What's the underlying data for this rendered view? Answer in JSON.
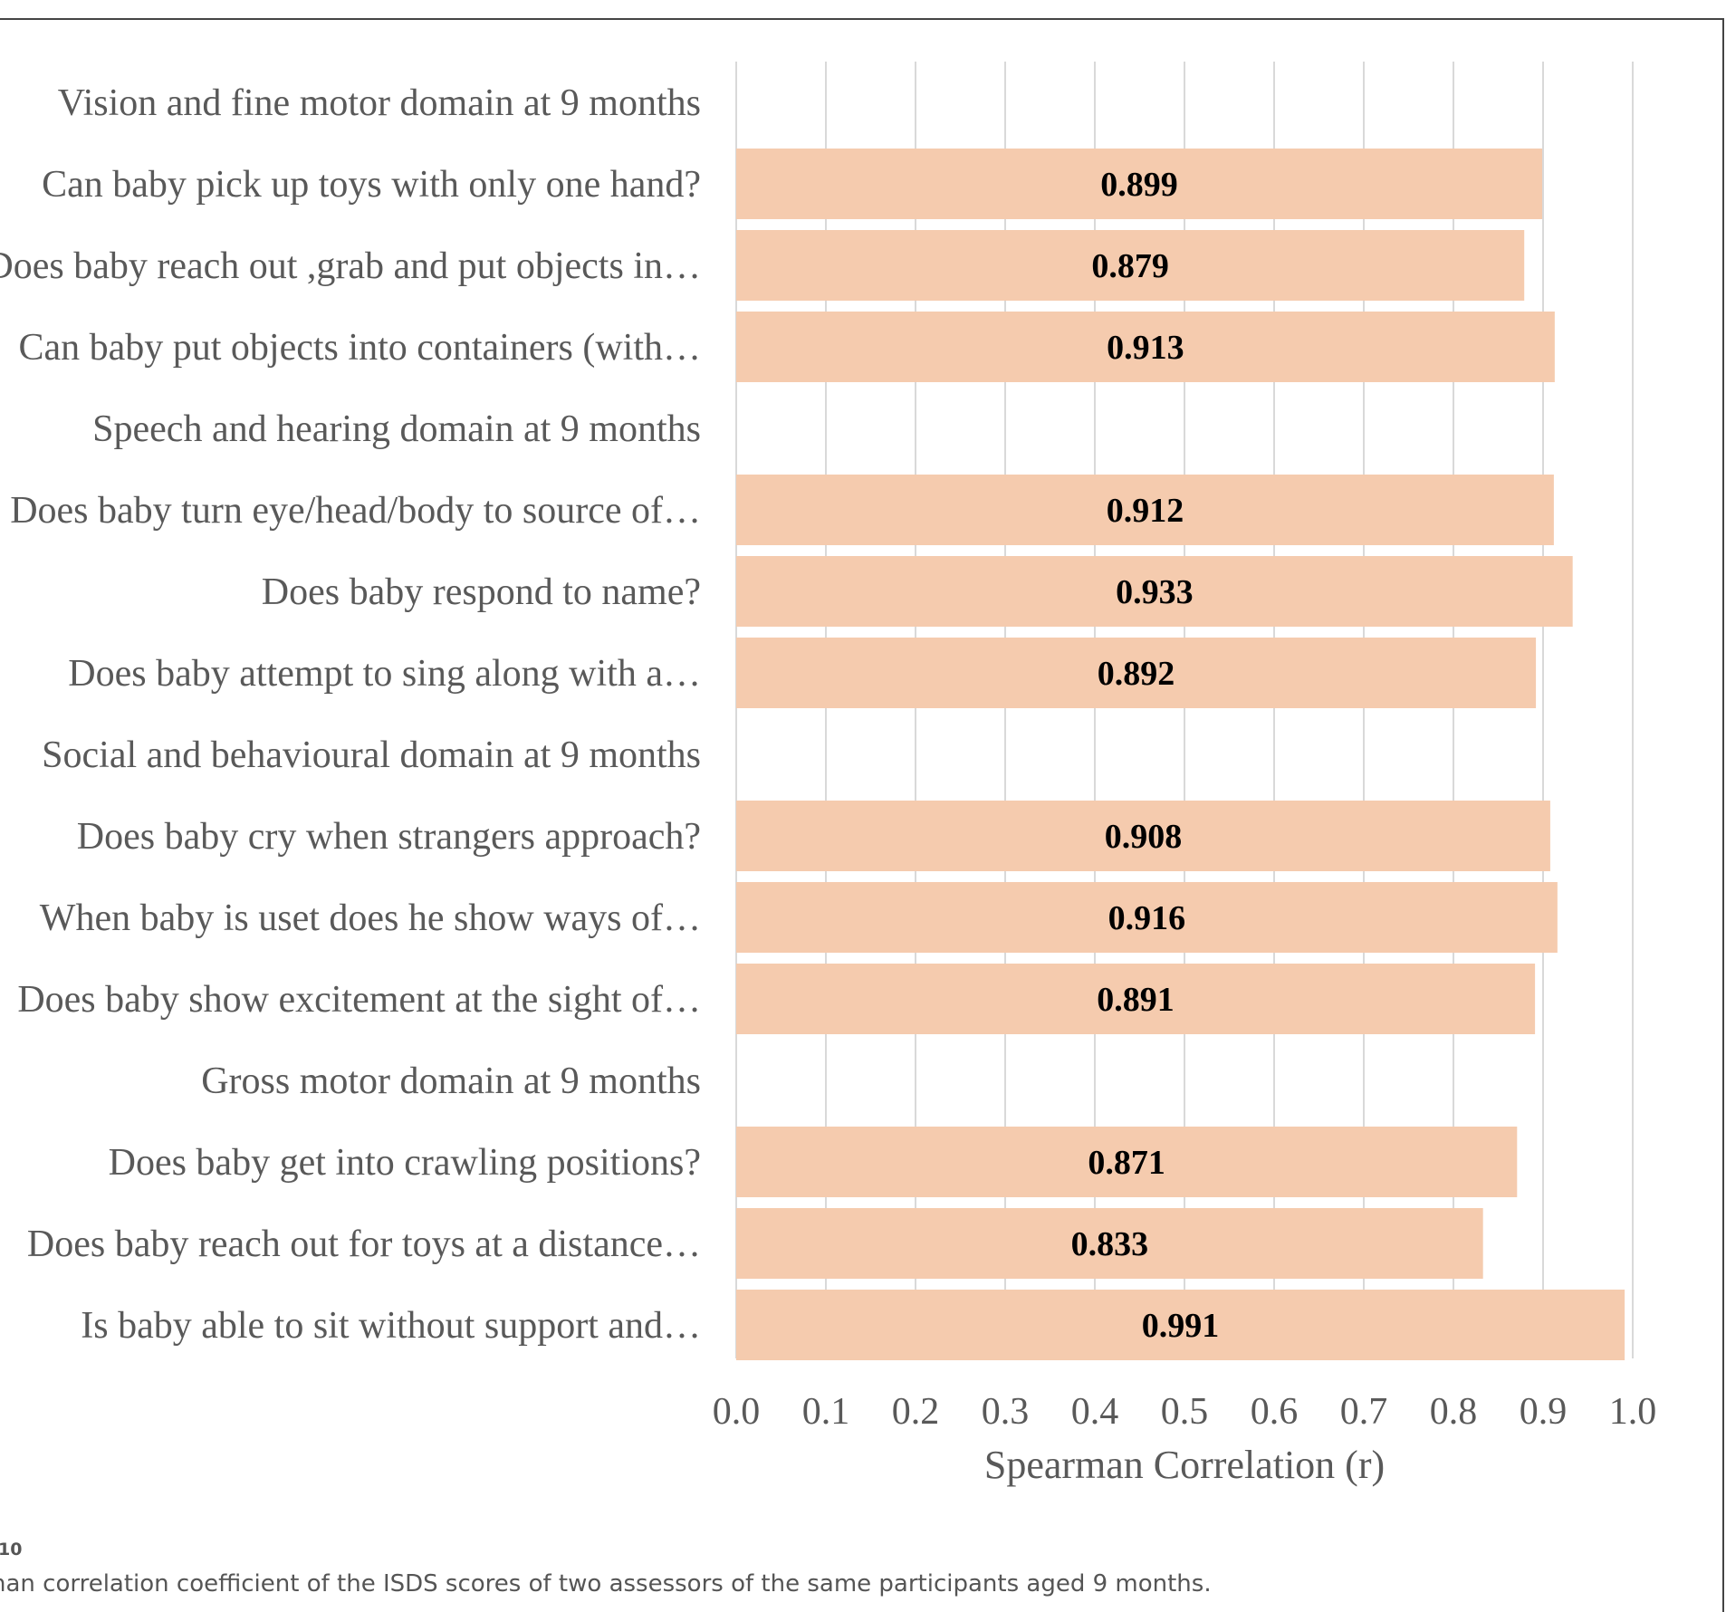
{
  "chart_data": {
    "type": "bar",
    "orientation": "horizontal",
    "categories": [
      "Vision and fine motor domain at 9 months",
      "Can baby pick up toys with only one hand?",
      "Does baby reach out ,grab and put objects in…",
      "Can baby put objects into containers (with…",
      "Speech and hearing domain at 9 months",
      "Does baby turn eye/head/body to source of…",
      "Does baby respond to name?",
      "Does baby attempt to sing along with a…",
      "Social and behavioural domain at 9 months",
      "Does baby cry when strangers approach?",
      "When baby is uset does he show ways of…",
      "Does baby show excitement at the sight of…",
      "Gross motor domain at 9 months",
      "Does baby get into crawling positions?",
      "Does baby reach out for toys at a distance…",
      "Is baby able to sit without support and…"
    ],
    "values": [
      null,
      0.899,
      0.879,
      0.913,
      null,
      0.912,
      0.933,
      0.892,
      null,
      0.908,
      0.916,
      0.891,
      null,
      0.871,
      0.833,
      0.991
    ],
    "data_labels": [
      "",
      "0.899",
      "0.879",
      "0.913",
      "",
      "0.912",
      "0.933",
      "0.892",
      "",
      "0.908",
      "0.916",
      "0.891",
      "",
      "0.871",
      "0.833",
      "0.991"
    ],
    "xlabel": "Spearman Correlation (r)",
    "xlim": [
      0,
      1.0
    ],
    "xticks": [
      "0.0",
      "0.1",
      "0.2",
      "0.3",
      "0.4",
      "0.5",
      "0.6",
      "0.7",
      "0.8",
      "0.9",
      "1.0"
    ],
    "grid": true,
    "bar_color": "#F5CBAE",
    "grid_color": "#D9D9D9"
  },
  "caption": {
    "figure_label": "10",
    "text": "nan correlation coefficient of the ISDS scores of two assessors of the same participants aged 9 months."
  }
}
